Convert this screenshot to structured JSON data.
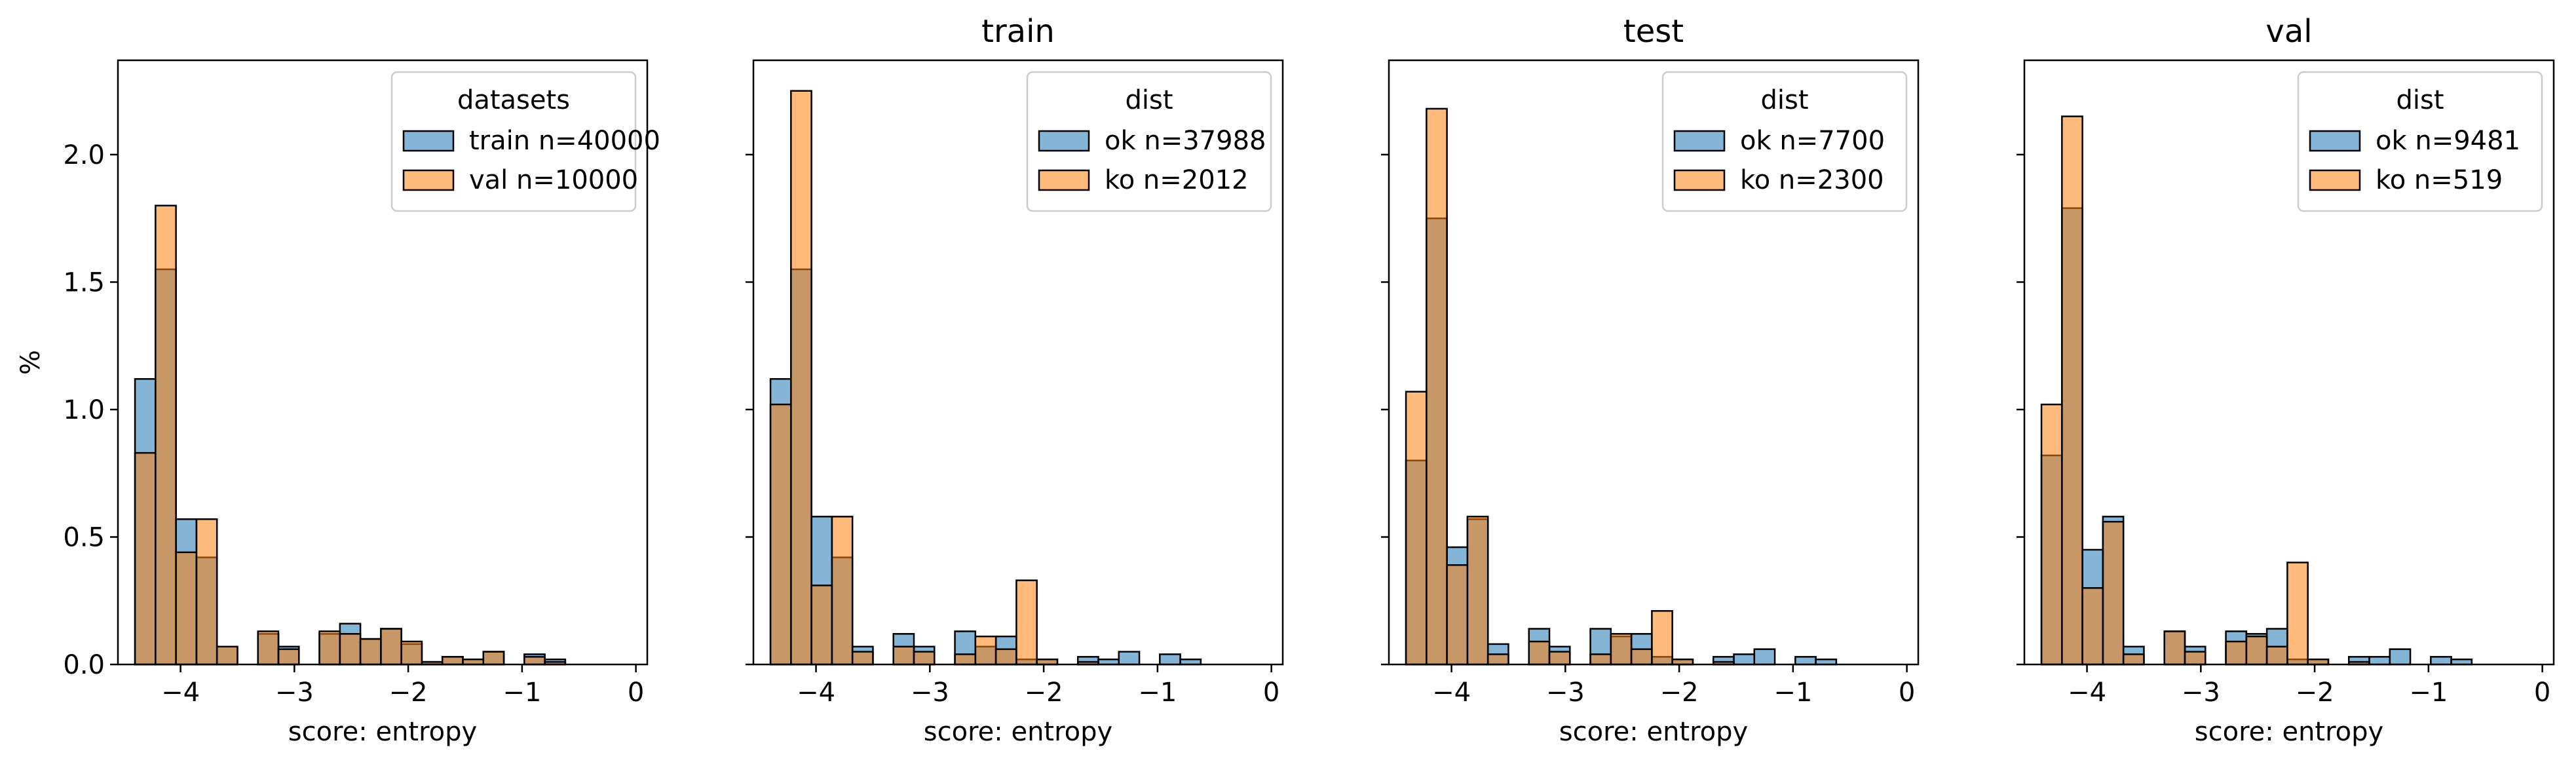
{
  "figure": {
    "ylabel": "%",
    "yticks": [
      0.0,
      0.5,
      1.0,
      1.5,
      2.0
    ],
    "ytick_labels": [
      "0.0",
      "0.5",
      "1.0",
      "1.5",
      "2.0"
    ],
    "xticks": [
      -4,
      -3,
      -2,
      -1,
      0
    ],
    "xtick_labels": [
      "−4",
      "−3",
      "−2",
      "−1",
      "0"
    ],
    "bin_edges": [
      -4.4,
      -4.22,
      -4.04,
      -3.86,
      -3.68,
      -3.5,
      -3.32,
      -3.14,
      -2.96,
      -2.78,
      -2.6,
      -2.42,
      -2.24,
      -2.06,
      -1.88,
      -1.7,
      -1.52,
      -1.34,
      -1.16,
      -0.98,
      -0.8,
      -0.62,
      -0.44,
      -0.26,
      -0.08
    ],
    "colors": {
      "blue": "#1f77b4",
      "orange": "#ff7f0e"
    }
  },
  "chart_data": [
    {
      "type": "bar",
      "title": "",
      "xlabel": "score: entropy",
      "ylabel": "%",
      "xlim": [
        -4.55,
        0.1
      ],
      "ylim": [
        0,
        2.37
      ],
      "legend": {
        "title": "datasets",
        "placement": "top-right"
      },
      "series": [
        {
          "name": "train n=40000",
          "color": "#1f77b4",
          "values": [
            1.12,
            1.55,
            0.57,
            0.42,
            0.07,
            0,
            0.12,
            0.07,
            0,
            0.12,
            0.16,
            0.1,
            0.14,
            0.08,
            0.01,
            0.03,
            0.02,
            0.05,
            0,
            0.04,
            0.02,
            0,
            0,
            0
          ]
        },
        {
          "name": "val n=10000",
          "color": "#ff7f0e",
          "values": [
            0.83,
            1.8,
            0.44,
            0.57,
            0.07,
            0,
            0.13,
            0.06,
            0,
            0.13,
            0.12,
            0.1,
            0.14,
            0.09,
            0.01,
            0.03,
            0.02,
            0.05,
            0,
            0.03,
            0.01,
            0,
            0,
            0
          ]
        }
      ]
    },
    {
      "type": "bar",
      "title": "train",
      "xlabel": "score: entropy",
      "xlim": [
        -4.55,
        0.1
      ],
      "ylim": [
        0,
        2.37
      ],
      "legend": {
        "title": "dist",
        "placement": "top-right"
      },
      "series": [
        {
          "name": "ok n=37988",
          "color": "#1f77b4",
          "values": [
            1.12,
            1.55,
            0.58,
            0.42,
            0.07,
            0,
            0.12,
            0.07,
            0,
            0.13,
            0.07,
            0.11,
            0.02,
            0.02,
            0,
            0.03,
            0.02,
            0.05,
            0,
            0.04,
            0.02,
            0,
            0,
            0
          ]
        },
        {
          "name": "ko n=2012",
          "color": "#ff7f0e",
          "values": [
            1.02,
            2.25,
            0.31,
            0.58,
            0.05,
            0,
            0.07,
            0.05,
            0,
            0.04,
            0.11,
            0.06,
            0.33,
            0.02,
            0,
            0.01,
            0,
            0,
            0,
            0,
            0,
            0,
            0,
            0
          ]
        }
      ]
    },
    {
      "type": "bar",
      "title": "test",
      "xlabel": "score: entropy",
      "xlim": [
        -4.55,
        0.1
      ],
      "ylim": [
        0,
        2.37
      ],
      "legend": {
        "title": "dist",
        "placement": "top-right"
      },
      "series": [
        {
          "name": "ok n=7700",
          "color": "#1f77b4",
          "values": [
            0.8,
            1.75,
            0.46,
            0.57,
            0.08,
            0,
            0.14,
            0.07,
            0,
            0.14,
            0.11,
            0.12,
            0.03,
            0.02,
            0,
            0.03,
            0.04,
            0.06,
            0,
            0.03,
            0.02,
            0,
            0,
            0
          ]
        },
        {
          "name": "ko n=2300",
          "color": "#ff7f0e",
          "values": [
            1.07,
            2.18,
            0.39,
            0.58,
            0.04,
            0,
            0.09,
            0.05,
            0,
            0.04,
            0.12,
            0.06,
            0.21,
            0.02,
            0,
            0.01,
            0,
            0,
            0,
            0,
            0,
            0,
            0,
            0
          ]
        }
      ]
    },
    {
      "type": "bar",
      "title": "val",
      "xlabel": "score: entropy",
      "xlim": [
        -4.55,
        0.1
      ],
      "ylim": [
        0,
        2.37
      ],
      "legend": {
        "title": "dist",
        "placement": "top-right"
      },
      "series": [
        {
          "name": "ok n=9481",
          "color": "#1f77b4",
          "values": [
            0.82,
            1.79,
            0.45,
            0.58,
            0.07,
            0,
            0.13,
            0.07,
            0,
            0.13,
            0.12,
            0.14,
            0.02,
            0.02,
            0,
            0.03,
            0.03,
            0.06,
            0,
            0.03,
            0.02,
            0,
            0,
            0
          ]
        },
        {
          "name": "ko n=519",
          "color": "#ff7f0e",
          "values": [
            1.02,
            2.15,
            0.3,
            0.56,
            0.04,
            0,
            0.13,
            0.05,
            0,
            0.09,
            0.11,
            0.07,
            0.4,
            0.02,
            0,
            0.01,
            0,
            0,
            0,
            0,
            0,
            0,
            0,
            0
          ]
        }
      ]
    }
  ]
}
